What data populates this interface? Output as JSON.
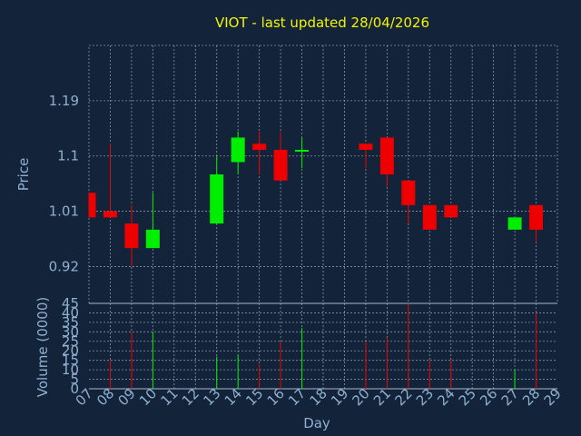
{
  "chart_data": {
    "type": "candlestick",
    "title": "VIOT - last updated 28/04/2026",
    "colors": {
      "background": "#13233a",
      "up": "#00ee00",
      "down": "#ee0000",
      "title": "#f5f500",
      "text": "#8fb0cf",
      "grid": "#a9bbcc"
    },
    "grid": true,
    "price_panel": {
      "ylabel": "Price",
      "ylim": [
        0.86,
        1.28
      ],
      "yticks": [
        0.92,
        1.01,
        1.1,
        1.19
      ],
      "ytick_labels": [
        "0.92",
        "1.01",
        "1.1",
        "1.19"
      ]
    },
    "volume_panel": {
      "ylabel": "Volume (0000)",
      "ylim": [
        0,
        45
      ],
      "yticks": [
        0,
        5,
        10,
        15,
        20,
        25,
        30,
        35,
        40,
        45
      ],
      "ytick_labels": [
        "0",
        "5",
        "10",
        "15",
        "20",
        "25",
        "30",
        "35",
        "40",
        "45"
      ]
    },
    "xlabel": "Day",
    "x_tick_labels": [
      "07",
      "08",
      "09",
      "10",
      "11",
      "12",
      "13",
      "14",
      "15",
      "16",
      "17",
      "18",
      "19",
      "20",
      "21",
      "22",
      "23",
      "24",
      "25",
      "26",
      "27",
      "28",
      "29"
    ],
    "candles": [
      {
        "day": "07",
        "open": 1.04,
        "high": 1.04,
        "low": 1.0,
        "close": 1.0,
        "volume": 0
      },
      {
        "day": "08",
        "open": 1.01,
        "high": 1.12,
        "low": 1.0,
        "close": 1.0,
        "volume": 15
      },
      {
        "day": "09",
        "open": 0.99,
        "high": 1.02,
        "low": 0.92,
        "close": 0.95,
        "volume": 30
      },
      {
        "day": "10",
        "open": 0.95,
        "high": 1.04,
        "low": 0.95,
        "close": 0.98,
        "volume": 30
      },
      {
        "day": "13",
        "open": 0.99,
        "high": 1.1,
        "low": 0.99,
        "close": 1.07,
        "volume": 17
      },
      {
        "day": "14",
        "open": 1.09,
        "high": 1.14,
        "low": 1.07,
        "close": 1.13,
        "volume": 18
      },
      {
        "day": "15",
        "open": 1.12,
        "high": 1.14,
        "low": 1.07,
        "close": 1.11,
        "volume": 13
      },
      {
        "day": "16",
        "open": 1.11,
        "high": 1.14,
        "low": 1.06,
        "close": 1.06,
        "volume": 25
      },
      {
        "day": "17",
        "open": 1.11,
        "high": 1.13,
        "low": 1.08,
        "close": 1.11,
        "volume": 32
      },
      {
        "day": "20",
        "open": 1.12,
        "high": 1.12,
        "low": 1.08,
        "close": 1.11,
        "volume": 25
      },
      {
        "day": "21",
        "open": 1.13,
        "high": 1.13,
        "low": 1.05,
        "close": 1.07,
        "volume": 27
      },
      {
        "day": "22",
        "open": 1.06,
        "high": 1.06,
        "low": 0.99,
        "close": 1.02,
        "volume": 45
      },
      {
        "day": "23",
        "open": 1.02,
        "high": 1.02,
        "low": 0.98,
        "close": 0.98,
        "volume": 15
      },
      {
        "day": "24",
        "open": 1.02,
        "high": 1.02,
        "low": 1.0,
        "close": 1.0,
        "volume": 15
      },
      {
        "day": "27",
        "open": 0.98,
        "high": 1.0,
        "low": 0.98,
        "close": 1.0,
        "volume": 10
      },
      {
        "day": "28",
        "open": 1.02,
        "high": 1.02,
        "low": 0.96,
        "close": 0.98,
        "volume": 40
      }
    ]
  }
}
